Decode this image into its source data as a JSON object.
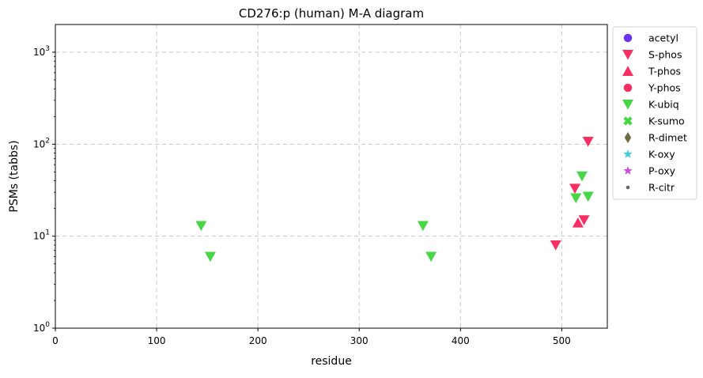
{
  "chart_data": {
    "type": "scatter",
    "title": "CD276:p (human) M-A diagram",
    "xlabel": "residue",
    "ylabel": "PSMs (tabbs)",
    "xlim": [
      0,
      545
    ],
    "ylim": [
      1,
      2000
    ],
    "yscale": "log",
    "grid": true,
    "legend_position": "outside-right-top",
    "x_ticks": [
      0,
      100,
      200,
      300,
      400,
      500
    ],
    "y_ticks": [
      {
        "value": 1,
        "label": "10^0"
      },
      {
        "value": 10,
        "label": "10^1"
      },
      {
        "value": 100,
        "label": "10^2"
      },
      {
        "value": 1000,
        "label": "10^3"
      }
    ],
    "series": [
      {
        "name": "acetyl",
        "marker": "circle",
        "color": "#6a33f5",
        "points": []
      },
      {
        "name": "S-phos",
        "marker": "triangle-down",
        "color": "#f72f62",
        "points": [
          [
            494,
            8
          ],
          [
            513,
            33
          ],
          [
            522,
            15
          ],
          [
            526,
            107
          ]
        ]
      },
      {
        "name": "T-phos",
        "marker": "triangle-up",
        "color": "#f72f62",
        "points": [
          [
            516,
            14
          ]
        ]
      },
      {
        "name": "Y-phos",
        "marker": "circle",
        "color": "#f72f62",
        "points": []
      },
      {
        "name": "K-ubiq",
        "marker": "triangle-down",
        "color": "#46d646",
        "points": [
          [
            144,
            13
          ],
          [
            153,
            6
          ],
          [
            363,
            13
          ],
          [
            371,
            6
          ],
          [
            514,
            26
          ],
          [
            520,
            45
          ],
          [
            526,
            27
          ]
        ]
      },
      {
        "name": "K-sumo",
        "marker": "x",
        "color": "#46d646",
        "points": []
      },
      {
        "name": "R-dimet",
        "marker": "diamond",
        "color": "#6b6b45",
        "points": []
      },
      {
        "name": "K-oxy",
        "marker": "star",
        "color": "#3fcfd6",
        "points": []
      },
      {
        "name": "P-oxy",
        "marker": "star",
        "color": "#c94fd6",
        "points": []
      },
      {
        "name": "R-citr",
        "marker": "point",
        "color": "#666666",
        "points": []
      }
    ]
  }
}
